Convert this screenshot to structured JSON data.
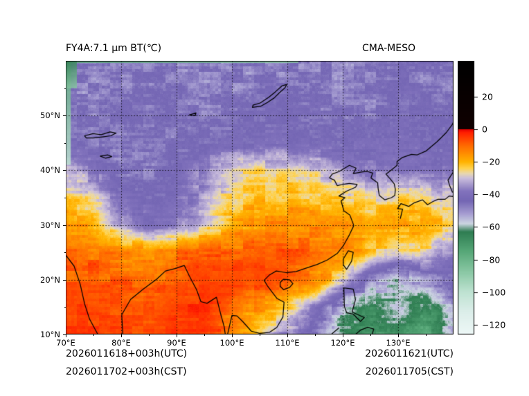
{
  "title_left": "FY4A:7.1 μm BT(℃)",
  "title_right": "CMA-MESO",
  "footer": {
    "left": [
      "2026011618+003h(UTC)",
      "2026011702+003h(CST)"
    ],
    "right": [
      "2026011621(UTC)",
      "2026011705(CST)"
    ]
  },
  "colors": {
    "background": "#ffffff",
    "text": "#000000",
    "coastline": "#000000"
  },
  "chart_data": {
    "type": "heatmap",
    "title": "FY4A:7.1 μm BT(℃)",
    "model_label": "CMA-MESO",
    "units": "℃",
    "x": {
      "range": [
        70,
        140
      ],
      "ticks": [
        70,
        80,
        90,
        100,
        110,
        120,
        130
      ],
      "tick_labels": [
        "70°E",
        "80°E",
        "90°E",
        "100°E",
        "110°E",
        "120°E",
        "130°E"
      ],
      "minor_ticks": [
        75,
        85,
        95,
        105,
        115,
        125,
        135
      ]
    },
    "y": {
      "range": [
        10,
        60
      ],
      "ticks": [
        50,
        40,
        30,
        20,
        10
      ],
      "tick_labels": [
        "50°N",
        "40°N",
        "30°N",
        "20°N",
        "10°N"
      ],
      "minor_ticks": [
        55,
        45,
        35,
        25,
        15
      ]
    },
    "gridlines": {
      "lons": [
        80,
        90,
        100,
        110,
        120,
        130
      ],
      "lats": [
        20,
        30,
        40,
        50
      ],
      "style": "dotted"
    },
    "colorbar": {
      "range": [
        -126,
        42
      ],
      "ticks": [
        20,
        0,
        -20,
        -40,
        -60,
        -80,
        -100,
        -120
      ],
      "tick_labels": [
        "20",
        "0",
        "−20",
        "−40",
        "−60",
        "−80",
        "−100",
        "−120"
      ],
      "stops": [
        [
          -126,
          "#eef8f7"
        ],
        [
          -112,
          "#dceeea"
        ],
        [
          -100,
          "#bfe3d2"
        ],
        [
          -88,
          "#8cc9a6"
        ],
        [
          -75,
          "#57a878"
        ],
        [
          -63,
          "#2f7d52"
        ],
        [
          -58,
          "#cdd5e2"
        ],
        [
          -52,
          "#a79ed2"
        ],
        [
          -44,
          "#7466b4"
        ],
        [
          -38,
          "#8273bd"
        ],
        [
          -30,
          "#cbbfdd"
        ],
        [
          -27,
          "#ead9ab"
        ],
        [
          -24,
          "#ffd24d"
        ],
        [
          -20,
          "#ffb300"
        ],
        [
          -10,
          "#ff6a00"
        ],
        [
          -2,
          "#ff1e00"
        ],
        [
          -0.05,
          "#e30000"
        ],
        [
          0,
          "#100000"
        ],
        [
          42,
          "#000000"
        ]
      ]
    },
    "grid": {
      "lons": [
        70,
        75,
        80,
        85,
        90,
        95,
        100,
        105,
        110,
        115,
        120,
        125,
        130,
        135,
        140
      ],
      "lats": [
        60,
        55,
        50,
        45,
        40,
        35,
        30,
        25,
        20,
        15,
        10
      ],
      "values_c": [
        [
          -46,
          -48,
          -47,
          -46,
          -47,
          -48,
          -47,
          -46,
          -46,
          -47,
          -48,
          -47,
          -45,
          -46,
          -47
        ],
        [
          -45,
          -47,
          -46,
          -45,
          -46,
          -47,
          -46,
          -45,
          -45,
          -46,
          -47,
          -46,
          -44,
          -45,
          -46
        ],
        [
          -44,
          -46,
          -45,
          -44,
          -45,
          -46,
          -45,
          -44,
          -44,
          -45,
          -46,
          -45,
          -43,
          -44,
          -45
        ],
        [
          -44,
          -45,
          -47,
          -46,
          -45,
          -44,
          -43,
          -42,
          -42,
          -43,
          -44,
          -43,
          -42,
          -43,
          -44
        ],
        [
          -32,
          -38,
          -46,
          -46,
          -42,
          -36,
          -28,
          -25,
          -26,
          -29,
          -34,
          -38,
          -37,
          -39,
          -41
        ],
        [
          -24,
          -28,
          -40,
          -44,
          -42,
          -34,
          -24,
          -21,
          -21,
          -22,
          -24,
          -26,
          -25,
          -27,
          -29
        ],
        [
          -14,
          -20,
          -34,
          -40,
          -38,
          -30,
          -20,
          -15,
          -14,
          -15,
          -16,
          -17,
          -17,
          -19,
          -22
        ],
        [
          -11,
          -11,
          -13,
          -14,
          -12,
          -10,
          -9,
          -8,
          -8,
          -10,
          -13,
          -22,
          -28,
          -26,
          -38
        ],
        [
          -8,
          -8,
          -9,
          -10,
          -8,
          -6,
          -5,
          -6,
          -8,
          -14,
          -28,
          -48,
          -58,
          -50,
          -44
        ],
        [
          -6,
          -6,
          -7,
          -8,
          -5,
          -4,
          -9,
          -16,
          -22,
          -36,
          -56,
          -66,
          -58,
          -68,
          -52
        ],
        [
          -5,
          -5,
          -6,
          -7,
          -4,
          -3,
          -14,
          -26,
          -36,
          -46,
          -62,
          -72,
          -64,
          -74,
          -58
        ]
      ]
    },
    "edge_artifacts": [
      {
        "name": "left-edge-strip",
        "lon": [
          70,
          70.9
        ],
        "lat": [
          41,
          60
        ],
        "colors": [
          "#57a878",
          "#bfe3d2"
        ]
      },
      {
        "name": "top-edge-strip",
        "lon": [
          70,
          112
        ],
        "lat": [
          59.62,
          60
        ],
        "colors": [
          "#57a878",
          "#8cc9a6"
        ]
      },
      {
        "name": "top-left-corner",
        "lon": [
          70,
          72
        ],
        "lat": [
          55,
          60
        ],
        "colors": [
          "#2f7d52",
          "#8cc9a6"
        ]
      }
    ],
    "coastlines": [
      [
        [
          70,
          24.5
        ],
        [
          71.5,
          22.5
        ],
        [
          72.6,
          19.2
        ],
        [
          73.4,
          15.6
        ],
        [
          74.3,
          12.8
        ],
        [
          75.8,
          10
        ]
      ],
      [
        [
          80.3,
          10
        ],
        [
          80.1,
          13.6
        ],
        [
          81.7,
          16.4
        ],
        [
          84,
          18.3
        ],
        [
          86.4,
          20.1
        ],
        [
          88,
          21.6
        ],
        [
          89.6,
          22
        ],
        [
          91.4,
          22.6
        ],
        [
          92.3,
          20.7
        ],
        [
          93.6,
          18.2
        ],
        [
          94.4,
          16
        ],
        [
          95.5,
          15.7
        ],
        [
          97.2,
          16.8
        ],
        [
          98,
          13.6
        ],
        [
          98.6,
          11.4
        ],
        [
          98.8,
          10
        ]
      ],
      [
        [
          99.2,
          10
        ],
        [
          100,
          13.5
        ],
        [
          100.9,
          13.4
        ],
        [
          102,
          12.3
        ],
        [
          103.5,
          10.6
        ],
        [
          105,
          10.2
        ],
        [
          106.8,
          10.4
        ],
        [
          108.1,
          11.3
        ],
        [
          109.2,
          13.2
        ],
        [
          109.4,
          15.9
        ],
        [
          108.1,
          16.6
        ],
        [
          106.4,
          18.9
        ],
        [
          105.8,
          19.9
        ],
        [
          106.8,
          20.9
        ],
        [
          108,
          21.6
        ],
        [
          109.8,
          21.3
        ],
        [
          111.6,
          21.5
        ],
        [
          113.6,
          22.2
        ],
        [
          115.4,
          22.8
        ],
        [
          117.2,
          23.6
        ],
        [
          119,
          24.8
        ],
        [
          120.1,
          26.2
        ],
        [
          121.2,
          28.2
        ],
        [
          122,
          29.9
        ],
        [
          121.3,
          31.8
        ],
        [
          120.2,
          32.6
        ],
        [
          119.7,
          34.4
        ],
        [
          120.4,
          35
        ],
        [
          119.3,
          35.3
        ],
        [
          120.7,
          36.2
        ],
        [
          122.3,
          36.9
        ],
        [
          122.6,
          37.4
        ],
        [
          121.2,
          37.6
        ],
        [
          119.9,
          37.4
        ],
        [
          119,
          37.2
        ],
        [
          118.5,
          38.2
        ],
        [
          117.6,
          38.6
        ],
        [
          118.1,
          39.3
        ],
        [
          119.4,
          39.8
        ],
        [
          121.2,
          40.9
        ],
        [
          122.4,
          40.4
        ],
        [
          121.9,
          39.4
        ],
        [
          123.4,
          39.7
        ],
        [
          124.4,
          39.8
        ],
        [
          125.4,
          39.5
        ],
        [
          125.1,
          38.6
        ],
        [
          126.3,
          37.7
        ],
        [
          126.4,
          36.6
        ],
        [
          126.6,
          35.4
        ],
        [
          127.6,
          34.6
        ],
        [
          128.8,
          35
        ],
        [
          129.4,
          35.4
        ],
        [
          129.5,
          36.5
        ],
        [
          129.3,
          37.5
        ],
        [
          128.6,
          38.4
        ],
        [
          127.8,
          39.3
        ],
        [
          128.7,
          40
        ],
        [
          129.8,
          40.9
        ],
        [
          129.8,
          41.6
        ],
        [
          130.7,
          42.3
        ],
        [
          132.4,
          42.9
        ],
        [
          133.4,
          42.8
        ],
        [
          135,
          43.5
        ],
        [
          137,
          45.2
        ],
        [
          138.7,
          46.9
        ],
        [
          139.8,
          48.4
        ],
        [
          140,
          48.9
        ]
      ],
      [
        [
          130.4,
          31.2
        ],
        [
          130.8,
          32.9
        ],
        [
          129.9,
          33
        ],
        [
          130.5,
          33.9
        ],
        [
          131.9,
          33.4
        ],
        [
          132.8,
          34
        ],
        [
          134.4,
          34.6
        ],
        [
          135.3,
          33.7
        ],
        [
          136.3,
          34.3
        ],
        [
          137.2,
          34.7
        ],
        [
          138.5,
          34.7
        ],
        [
          139.2,
          35.3
        ],
        [
          139.9,
          35.2
        ],
        [
          140,
          35.7
        ]
      ],
      [
        [
          139.8,
          36
        ],
        [
          139.3,
          37.2
        ],
        [
          139,
          38.2
        ],
        [
          139.9,
          39.6
        ],
        [
          140,
          40.6
        ]
      ],
      [
        [
          139.9,
          41.9
        ],
        [
          140.5,
          42.7
        ],
        [
          140.2,
          43.4
        ]
      ],
      [
        [
          121,
          25.3
        ],
        [
          121.9,
          25
        ],
        [
          121.6,
          23.4
        ],
        [
          120.7,
          21.9
        ],
        [
          120.1,
          22.7
        ],
        [
          120.1,
          23.8
        ],
        [
          121,
          25.3
        ]
      ],
      [
        [
          108.7,
          19.5
        ],
        [
          109.3,
          20.1
        ],
        [
          110.4,
          20
        ],
        [
          111,
          19.3
        ],
        [
          110.4,
          18.6
        ],
        [
          109.3,
          18.2
        ],
        [
          108.7,
          18.8
        ],
        [
          108.7,
          19.5
        ]
      ],
      [
        [
          120.2,
          18.5
        ],
        [
          121.9,
          18.3
        ],
        [
          122.3,
          16.4
        ],
        [
          121.7,
          14.1
        ],
        [
          123.9,
          13.1
        ],
        [
          123.2,
          12.4
        ],
        [
          121.9,
          13.7
        ],
        [
          120.7,
          14
        ],
        [
          120.3,
          15.1
        ],
        [
          120.2,
          18.5
        ]
      ],
      [
        [
          122.3,
          10
        ],
        [
          123.2,
          10.8
        ],
        [
          124.5,
          11.3
        ],
        [
          125.6,
          11
        ],
        [
          125.3,
          10
        ]
      ],
      [
        [
          117.9,
          10
        ],
        [
          119.3,
          11.2
        ]
      ],
      [
        [
          73.4,
          46.3
        ],
        [
          74.9,
          46.7
        ],
        [
          76.4,
          46.5
        ],
        [
          78,
          47
        ],
        [
          79.1,
          46.8
        ],
        [
          78.1,
          46.3
        ],
        [
          76.6,
          46.1
        ],
        [
          75,
          45.9
        ],
        [
          73.7,
          45.9
        ],
        [
          73.4,
          46.3
        ]
      ],
      [
        [
          103.7,
          51.5
        ],
        [
          105.2,
          51.7
        ],
        [
          106.4,
          52.4
        ],
        [
          107.6,
          53.2
        ],
        [
          108.6,
          54.2
        ],
        [
          109.6,
          55.1
        ],
        [
          109.9,
          55.7
        ],
        [
          109,
          55.4
        ],
        [
          107.8,
          54.3
        ],
        [
          106.6,
          53.3
        ],
        [
          105.1,
          52.3
        ],
        [
          103.8,
          51.9
        ],
        [
          103.7,
          51.5
        ]
      ],
      [
        [
          76.2,
          42.6
        ],
        [
          77.6,
          42.8
        ],
        [
          78.3,
          42.5
        ],
        [
          77.2,
          42.2
        ],
        [
          76.2,
          42.6
        ]
      ],
      [
        [
          92.3,
          50.1
        ],
        [
          93.5,
          50.5
        ],
        [
          93.4,
          50
        ],
        [
          92.3,
          50.1
        ]
      ]
    ]
  }
}
